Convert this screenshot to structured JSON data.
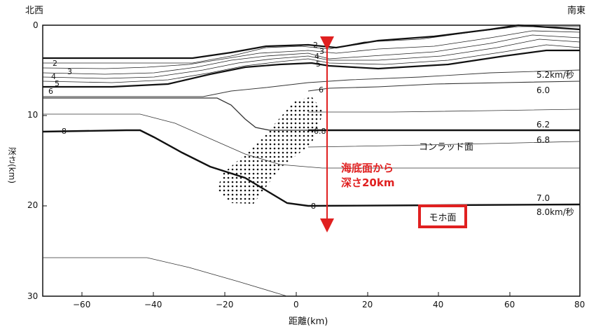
{
  "corner": {
    "left": "北西",
    "right": "南東"
  },
  "axes": {
    "xlabel": "距離(km)",
    "ylabel": "深さ(km)",
    "xticks": [
      "−60",
      "−40",
      "−20",
      "0",
      "20",
      "40",
      "60",
      "80"
    ],
    "yticks": [
      "0",
      "10",
      "20",
      "30"
    ]
  },
  "layer_labels_left": [
    "2",
    "3",
    "4",
    "5",
    "6"
  ],
  "layer_labels_center": [
    "2",
    "3",
    "4",
    "5"
  ],
  "contour_labels": {
    "c6": "6",
    "c68": "6.8",
    "c8_left": "8",
    "c8_center": "8"
  },
  "velocity_labels": [
    "5.2km/秒",
    "6.0",
    "6.2",
    "6.8",
    "7.0",
    "8.0km/秒"
  ],
  "conrad": "コンラッド面",
  "moho": "モホ面",
  "annotation": {
    "line1": "海底面から",
    "line2": "深さ20km"
  },
  "colors": {
    "accent": "#e02020",
    "line": "#111111"
  }
}
